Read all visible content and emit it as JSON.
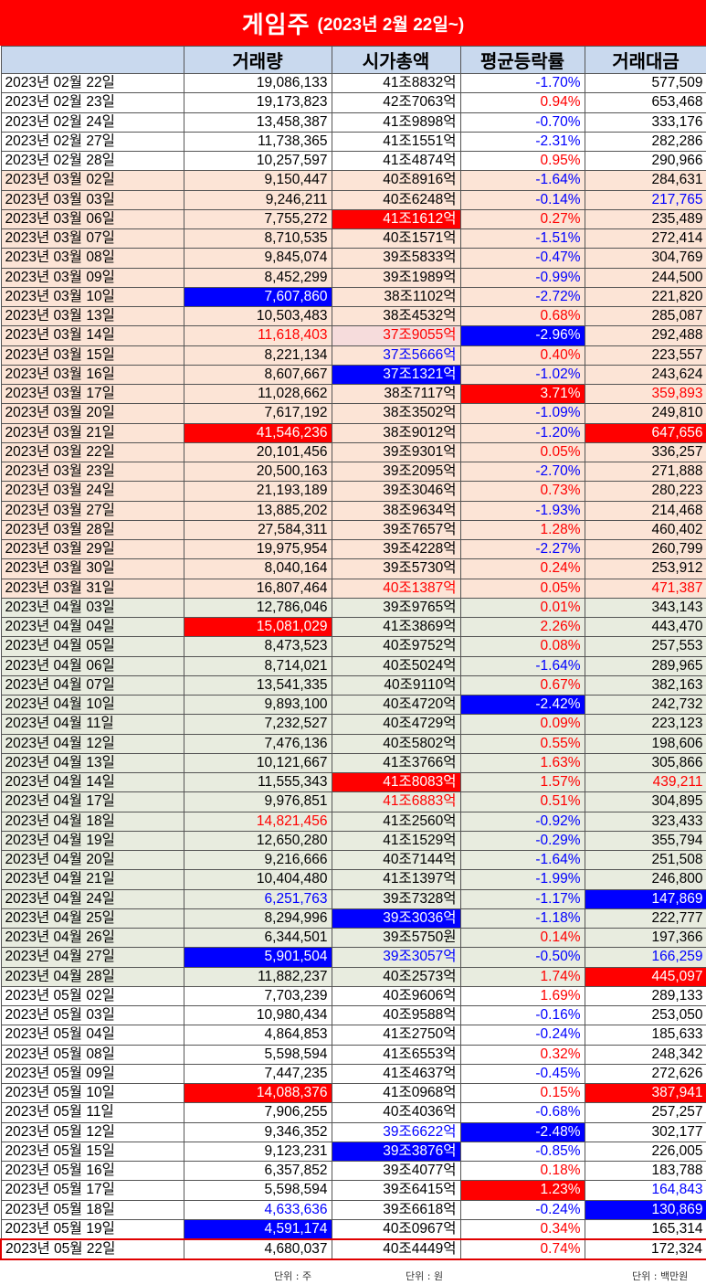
{
  "title": {
    "main": "게임주",
    "sub": "(2023년 2월 22일~)"
  },
  "headers": [
    "",
    "거래량",
    "시가총액",
    "평균등락률",
    "거래대금"
  ],
  "units": {
    "volume": "단위 : 주",
    "cap": "단위 : 원",
    "value": "단위 : 백만원"
  },
  "colors": {
    "title_bg": "#ff0000",
    "header_bg": "#c9d9ee",
    "band_peach": "#fce4d6",
    "band_green": "#e8ecdf",
    "highlight_red": "#ff0000",
    "highlight_blue": "#0000ff",
    "up": "#ff0000",
    "down": "#0000ff"
  },
  "rows": [
    {
      "date": "2023년 02월 22일",
      "volume": "19,086,133",
      "cap": "41조8832억",
      "change": "-1.70%",
      "value": "577,509",
      "band": "white"
    },
    {
      "date": "2023년 02월 23일",
      "volume": "19,173,823",
      "cap": "42조7063억",
      "change": "0.94%",
      "value": "653,468",
      "band": "white"
    },
    {
      "date": "2023년 02월 24일",
      "volume": "13,458,387",
      "cap": "41조9898억",
      "change": "-0.70%",
      "value": "333,176",
      "band": "white"
    },
    {
      "date": "2023년 02월 27일",
      "volume": "11,738,365",
      "cap": "41조1551억",
      "change": "-2.31%",
      "value": "282,286",
      "band": "white"
    },
    {
      "date": "2023년 02월 28일",
      "volume": "10,257,597",
      "cap": "41조4874억",
      "change": "0.95%",
      "value": "290,966",
      "band": "white"
    },
    {
      "date": "2023년 03월 02일",
      "volume": "9,150,447",
      "cap": "40조8916억",
      "change": "-1.64%",
      "value": "284,631",
      "band": "peach"
    },
    {
      "date": "2023년 03월 03일",
      "volume": "9,246,211",
      "cap": "40조6248억",
      "change": "-0.14%",
      "value": "217,765",
      "band": "peach",
      "s_value": "t-blue"
    },
    {
      "date": "2023년 03월 06일",
      "volume": "7,755,272",
      "cap": "41조1612억",
      "change": "0.27%",
      "value": "235,489",
      "band": "peach",
      "s_cap": "hl-red"
    },
    {
      "date": "2023년 03월 07일",
      "volume": "8,710,535",
      "cap": "40조1571억",
      "change": "-1.51%",
      "value": "272,414",
      "band": "peach"
    },
    {
      "date": "2023년 03월 08일",
      "volume": "9,845,074",
      "cap": "39조5833억",
      "change": "-0.47%",
      "value": "304,769",
      "band": "peach"
    },
    {
      "date": "2023년 03월 09일",
      "volume": "8,452,299",
      "cap": "39조1989억",
      "change": "-0.99%",
      "value": "244,500",
      "band": "peach"
    },
    {
      "date": "2023년 03월 10일",
      "volume": "7,607,860",
      "cap": "38조1102억",
      "change": "-2.72%",
      "value": "221,820",
      "band": "peach",
      "s_volume": "hl-blue"
    },
    {
      "date": "2023년 03월 13일",
      "volume": "10,503,483",
      "cap": "38조4532억",
      "change": "0.68%",
      "value": "285,087",
      "band": "peach"
    },
    {
      "date": "2023년 03월 14일",
      "volume": "11,618,403",
      "cap": "37조9055억",
      "change": "-2.96%",
      "value": "292,488",
      "band": "peach",
      "s_volume": "t-red",
      "s_cap": "hl-pink",
      "s_change": "hl-blue"
    },
    {
      "date": "2023년 03월 15일",
      "volume": "8,221,134",
      "cap": "37조5666억",
      "change": "0.40%",
      "value": "223,557",
      "band": "peach",
      "s_cap": "t-blue"
    },
    {
      "date": "2023년 03월 16일",
      "volume": "8,607,667",
      "cap": "37조1321억",
      "change": "-1.02%",
      "value": "243,624",
      "band": "peach",
      "s_cap": "hl-blue"
    },
    {
      "date": "2023년 03월 17일",
      "volume": "11,028,662",
      "cap": "38조7117억",
      "change": "3.71%",
      "value": "359,893",
      "band": "peach",
      "s_change": "hl-red",
      "s_value": "t-red"
    },
    {
      "date": "2023년 03월 20일",
      "volume": "7,617,192",
      "cap": "38조3502억",
      "change": "-1.09%",
      "value": "249,810",
      "band": "peach"
    },
    {
      "date": "2023년 03월 21일",
      "volume": "41,546,236",
      "cap": "38조9012억",
      "change": "-1.20%",
      "value": "647,656",
      "band": "peach",
      "s_volume": "hl-red",
      "s_value": "hl-red"
    },
    {
      "date": "2023년 03월 22일",
      "volume": "20,101,456",
      "cap": "39조9301억",
      "change": "0.05%",
      "value": "336,257",
      "band": "peach"
    },
    {
      "date": "2023년 03월 23일",
      "volume": "20,500,163",
      "cap": "39조2095억",
      "change": "-2.70%",
      "value": "271,888",
      "band": "peach"
    },
    {
      "date": "2023년 03월 24일",
      "volume": "21,193,189",
      "cap": "39조3046억",
      "change": "0.73%",
      "value": "280,223",
      "band": "peach"
    },
    {
      "date": "2023년 03월 27일",
      "volume": "13,885,202",
      "cap": "38조9634억",
      "change": "-1.93%",
      "value": "214,468",
      "band": "peach"
    },
    {
      "date": "2023년 03월 28일",
      "volume": "27,584,311",
      "cap": "39조7657억",
      "change": "1.28%",
      "value": "460,402",
      "band": "peach"
    },
    {
      "date": "2023년 03월 29일",
      "volume": "19,975,954",
      "cap": "39조4228억",
      "change": "-2.27%",
      "value": "260,799",
      "band": "peach"
    },
    {
      "date": "2023년 03월 30일",
      "volume": "8,040,164",
      "cap": "39조5730억",
      "change": "0.24%",
      "value": "253,912",
      "band": "peach"
    },
    {
      "date": "2023년 03월 31일",
      "volume": "16,807,464",
      "cap": "40조1387억",
      "change": "0.05%",
      "value": "471,387",
      "band": "peach",
      "s_cap": "t-red",
      "s_value": "t-red"
    },
    {
      "date": "2023년 04월 03일",
      "volume": "12,786,046",
      "cap": "39조9765억",
      "change": "0.01%",
      "value": "343,143",
      "band": "green"
    },
    {
      "date": "2023년 04월 04일",
      "volume": "15,081,029",
      "cap": "41조3869억",
      "change": "2.26%",
      "value": "443,470",
      "band": "green",
      "s_volume": "hl-red"
    },
    {
      "date": "2023년 04월 05일",
      "volume": "8,473,523",
      "cap": "40조9752억",
      "change": "0.08%",
      "value": "257,553",
      "band": "green"
    },
    {
      "date": "2023년 04월 06일",
      "volume": "8,714,021",
      "cap": "40조5024억",
      "change": "-1.64%",
      "value": "289,965",
      "band": "green"
    },
    {
      "date": "2023년 04월 07일",
      "volume": "13,541,335",
      "cap": "40조9110억",
      "change": "0.67%",
      "value": "382,163",
      "band": "green"
    },
    {
      "date": "2023년 04월 10일",
      "volume": "9,893,100",
      "cap": "40조4720억",
      "change": "-2.42%",
      "value": "242,732",
      "band": "green",
      "s_change": "hl-blue"
    },
    {
      "date": "2023년 04월 11일",
      "volume": "7,232,527",
      "cap": "40조4729억",
      "change": "0.09%",
      "value": "223,123",
      "band": "green"
    },
    {
      "date": "2023년 04월 12일",
      "volume": "7,476,136",
      "cap": "40조5802억",
      "change": "0.55%",
      "value": "198,606",
      "band": "green"
    },
    {
      "date": "2023년 04월 13일",
      "volume": "10,121,667",
      "cap": "41조3766억",
      "change": "1.63%",
      "value": "305,866",
      "band": "green"
    },
    {
      "date": "2023년 04월 14일",
      "volume": "11,555,343",
      "cap": "41조8083억",
      "change": "1.57%",
      "value": "439,211",
      "band": "green",
      "s_cap": "hl-red",
      "s_value": "t-red"
    },
    {
      "date": "2023년 04월 17일",
      "volume": "9,976,851",
      "cap": "41조6883억",
      "change": "0.51%",
      "value": "304,895",
      "band": "green",
      "s_cap": "t-red"
    },
    {
      "date": "2023년 04월 18일",
      "volume": "14,821,456",
      "cap": "41조2560억",
      "change": "-0.92%",
      "value": "323,433",
      "band": "green",
      "s_volume": "t-red"
    },
    {
      "date": "2023년 04월 19일",
      "volume": "12,650,280",
      "cap": "41조1529억",
      "change": "-0.29%",
      "value": "355,794",
      "band": "green"
    },
    {
      "date": "2023년 04월 20일",
      "volume": "9,216,666",
      "cap": "40조7144억",
      "change": "-1.64%",
      "value": "251,508",
      "band": "green"
    },
    {
      "date": "2023년 04월 21일",
      "volume": "10,404,480",
      "cap": "41조1397억",
      "change": "-1.99%",
      "value": "246,800",
      "band": "green"
    },
    {
      "date": "2023년 04월 24일",
      "volume": "6,251,763",
      "cap": "39조7328억",
      "change": "-1.17%",
      "value": "147,869",
      "band": "green",
      "s_volume": "t-blue",
      "s_value": "hl-blue"
    },
    {
      "date": "2023년 04월 25일",
      "volume": "8,294,996",
      "cap": "39조3036억",
      "change": "-1.18%",
      "value": "222,777",
      "band": "green",
      "s_cap": "hl-blue"
    },
    {
      "date": "2023년 04월 26일",
      "volume": "6,344,501",
      "cap": "39조5750원",
      "change": "0.14%",
      "value": "197,366",
      "band": "green"
    },
    {
      "date": "2023년 04월 27일",
      "volume": "5,901,504",
      "cap": "39조3057억",
      "change": "-0.50%",
      "value": "166,259",
      "band": "green",
      "s_volume": "hl-blue",
      "s_cap": "t-blue",
      "s_value": "t-blue"
    },
    {
      "date": "2023년 04월 28일",
      "volume": "11,882,237",
      "cap": "40조2573억",
      "change": "1.74%",
      "value": "445,097",
      "band": "green",
      "s_value": "hl-red"
    },
    {
      "date": "2023년 05월 02일",
      "volume": "7,703,239",
      "cap": "40조9606억",
      "change": "1.69%",
      "value": "289,133",
      "band": "white"
    },
    {
      "date": "2023년 05월 03일",
      "volume": "10,980,434",
      "cap": "40조9588억",
      "change": "-0.16%",
      "value": "253,050",
      "band": "white"
    },
    {
      "date": "2023년 05월 04일",
      "volume": "4,864,853",
      "cap": "41조2750억",
      "change": "-0.24%",
      "value": "185,633",
      "band": "white"
    },
    {
      "date": "2023년 05월 08일",
      "volume": "5,598,594",
      "cap": "41조6553억",
      "change": "0.32%",
      "value": "248,342",
      "band": "white"
    },
    {
      "date": "2023년 05월 09일",
      "volume": "7,447,235",
      "cap": "41조4637억",
      "change": "-0.45%",
      "value": "272,626",
      "band": "white"
    },
    {
      "date": "2023년 05월 10일",
      "volume": "14,088,376",
      "cap": "41조0968억",
      "change": "0.15%",
      "value": "387,941",
      "band": "white",
      "s_volume": "hl-red",
      "s_value": "hl-red"
    },
    {
      "date": "2023년 05월 11일",
      "volume": "7,906,255",
      "cap": "40조4036억",
      "change": "-0.68%",
      "value": "257,257",
      "band": "white"
    },
    {
      "date": "2023년 05월 12일",
      "volume": "9,346,352",
      "cap": "39조6622억",
      "change": "-2.48%",
      "value": "302,177",
      "band": "white",
      "s_cap": "t-blue",
      "s_change": "hl-blue"
    },
    {
      "date": "2023년 05월 15일",
      "volume": "9,123,231",
      "cap": "39조3876억",
      "change": "-0.85%",
      "value": "226,005",
      "band": "white",
      "s_cap": "hl-blue"
    },
    {
      "date": "2023년 05월 16일",
      "volume": "6,357,852",
      "cap": "39조4077억",
      "change": "0.18%",
      "value": "183,788",
      "band": "white"
    },
    {
      "date": "2023년 05월 17일",
      "volume": "5,598,594",
      "cap": "39조6415억",
      "change": "1.23%",
      "value": "164,843",
      "band": "white",
      "s_change": "hl-red",
      "s_value": "t-blue"
    },
    {
      "date": "2023년 05월 18일",
      "volume": "4,633,636",
      "cap": "39조6618억",
      "change": "-0.24%",
      "value": "130,869",
      "band": "white",
      "s_volume": "t-blue",
      "s_value": "hl-blue"
    },
    {
      "date": "2023년 05월 19일",
      "volume": "4,591,174",
      "cap": "40조0967억",
      "change": "0.34%",
      "value": "165,314",
      "band": "white",
      "s_volume": "hl-blue"
    },
    {
      "date": "2023년 05월 22일",
      "volume": "4,680,037",
      "cap": "40조4449억",
      "change": "0.74%",
      "value": "172,324",
      "band": "white",
      "last": true
    }
  ]
}
